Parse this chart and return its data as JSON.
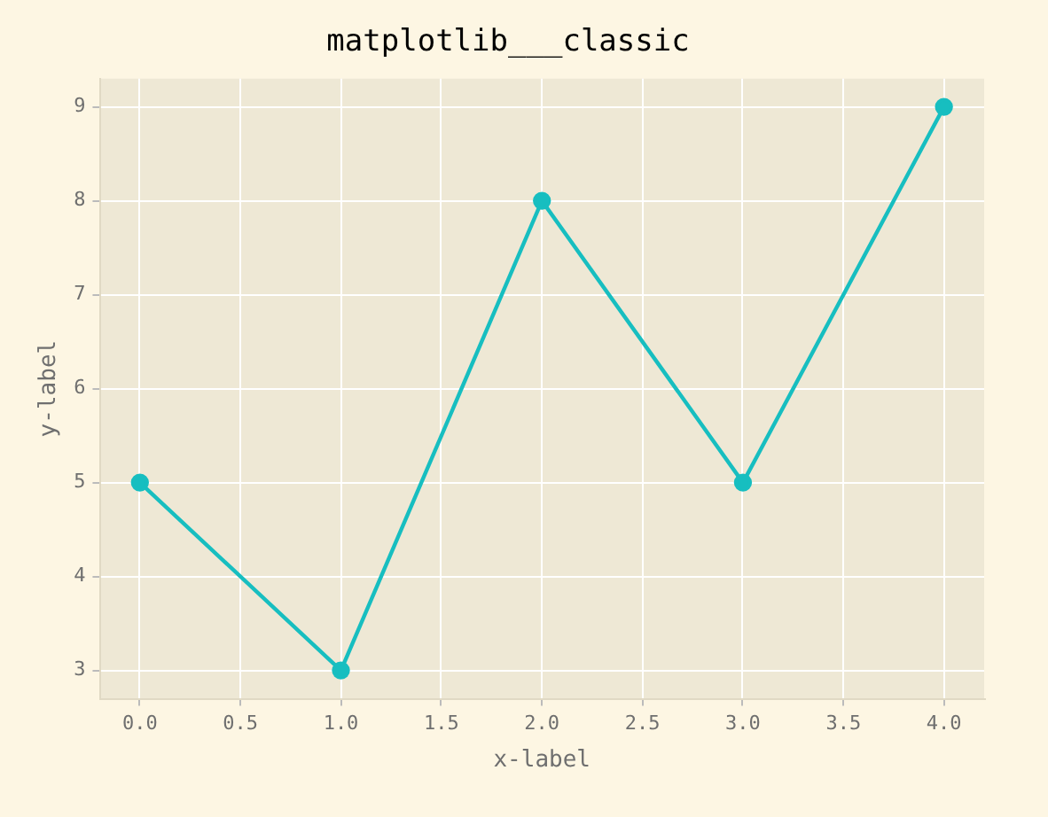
{
  "chart_data": {
    "type": "line",
    "title": "matplotlib___classic",
    "xlabel": "x-label",
    "ylabel": "y-label",
    "x": [
      0,
      1,
      2,
      3,
      4
    ],
    "series": [
      {
        "color": "#17bec0",
        "values": [
          5,
          3,
          8,
          5,
          9
        ]
      }
    ],
    "xlim": [
      -0.2,
      4.2
    ],
    "ylim": [
      2.7,
      9.3
    ],
    "xticks": [
      {
        "value": 0,
        "label": "0.0"
      },
      {
        "value": 0.5,
        "label": "0.5"
      },
      {
        "value": 1,
        "label": "1.0"
      },
      {
        "value": 1.5,
        "label": "1.5"
      },
      {
        "value": 2,
        "label": "2.0"
      },
      {
        "value": 2.5,
        "label": "2.5"
      },
      {
        "value": 3,
        "label": "3.0"
      },
      {
        "value": 3.5,
        "label": "3.5"
      },
      {
        "value": 4,
        "label": "4.0"
      }
    ],
    "yticks": [
      3,
      4,
      5,
      6,
      7,
      8,
      9
    ],
    "grid": true,
    "legend": false,
    "marker": "circle",
    "line_style": "solid"
  }
}
